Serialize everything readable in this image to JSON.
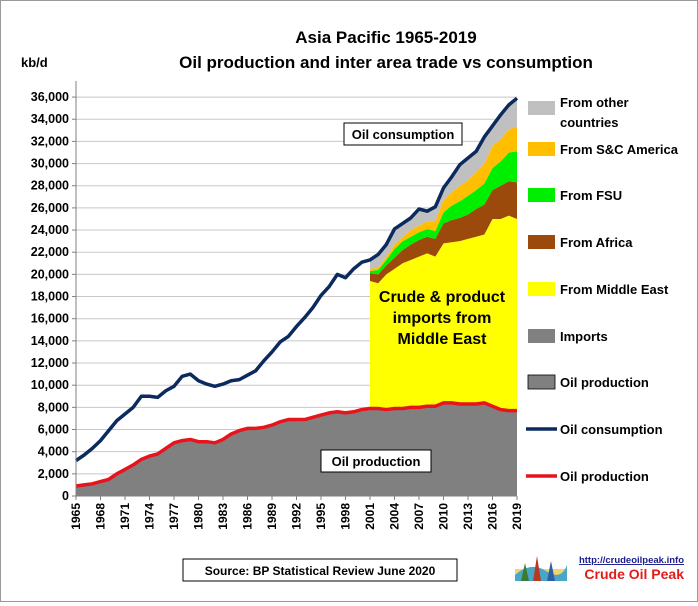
{
  "chart_data": {
    "type": "area",
    "title": "Asia Pacific 1965-2019",
    "subtitle": "Oil production and inter area trade vs consumption",
    "ylabel": "kb/d",
    "ylim": [
      0,
      37000
    ],
    "yticks": [
      0,
      2000,
      4000,
      6000,
      8000,
      10000,
      12000,
      14000,
      16000,
      18000,
      20000,
      22000,
      24000,
      26000,
      28000,
      30000,
      32000,
      34000,
      36000
    ],
    "ytick_labels": [
      "0",
      "2,000",
      "4,000",
      "6,000",
      "8,000",
      "10,000",
      "12,000",
      "14,000",
      "16,000",
      "18,000",
      "20,000",
      "22,000",
      "24,000",
      "26,000",
      "28,000",
      "30,000",
      "32,000",
      "34,000",
      "36,000"
    ],
    "xlim": [
      1965,
      2019
    ],
    "xticks": [
      1965,
      1968,
      1971,
      1974,
      1977,
      1980,
      1983,
      1986,
      1989,
      1992,
      1995,
      1998,
      2001,
      2004,
      2007,
      2010,
      2013,
      2016,
      2019
    ],
    "xtick_labels": [
      "1965",
      "1968",
      "1971",
      "1974",
      "1977",
      "1980",
      "1983",
      "1986",
      "1989",
      "1992",
      "1995",
      "1998",
      "2001",
      "2004",
      "2007",
      "2010",
      "2013",
      "2016",
      "2019"
    ],
    "grid": true,
    "legend_position": "right",
    "years": [
      1965,
      1966,
      1967,
      1968,
      1969,
      1970,
      1971,
      1972,
      1973,
      1974,
      1975,
      1976,
      1977,
      1978,
      1979,
      1980,
      1981,
      1982,
      1983,
      1984,
      1985,
      1986,
      1987,
      1988,
      1989,
      1990,
      1991,
      1992,
      1993,
      1994,
      1995,
      1996,
      1997,
      1998,
      1999,
      2000,
      2001,
      2002,
      2003,
      2004,
      2005,
      2006,
      2007,
      2008,
      2009,
      2010,
      2011,
      2012,
      2013,
      2014,
      2015,
      2016,
      2017,
      2018,
      2019
    ],
    "series": [
      {
        "name": "Oil consumption",
        "color": "#0b2a5e",
        "values": [
          3200,
          3700,
          4300,
          5000,
          5900,
          6800,
          7400,
          8000,
          9000,
          9000,
          8900,
          9500,
          9900,
          10800,
          11000,
          10400,
          10100,
          9900,
          10100,
          10400,
          10500,
          10900,
          11300,
          12200,
          13000,
          13900,
          14400,
          15300,
          16100,
          17000,
          18100,
          18900,
          20000,
          19700,
          20500,
          21100,
          21300,
          21800,
          22700,
          24100,
          24600,
          25100,
          25900,
          25700,
          26100,
          27800,
          28800,
          29900,
          30500,
          31100,
          32400,
          33400,
          34400,
          35300,
          35900
        ]
      },
      {
        "name": "Oil production",
        "color": "#e8141b",
        "values": [
          900,
          1000,
          1100,
          1300,
          1500,
          2000,
          2400,
          2800,
          3300,
          3600,
          3800,
          4300,
          4800,
          5000,
          5100,
          4900,
          4900,
          4800,
          5100,
          5600,
          5900,
          6100,
          6100,
          6200,
          6400,
          6700,
          6900,
          6900,
          6900,
          7100,
          7300,
          7500,
          7600,
          7500,
          7600,
          7800,
          7900,
          7900,
          7800,
          7900,
          7900,
          8000,
          8000,
          8100,
          8100,
          8400,
          8400,
          8300,
          8300,
          8300,
          8400,
          8100,
          7800,
          7700,
          7700
        ]
      }
    ],
    "imports_start_year": 2001,
    "imports_stack": [
      {
        "name": "From Middle East",
        "color": "#ffff00",
        "top": [
          19400,
          19200,
          20000,
          20500,
          21000,
          21300,
          21600,
          21900,
          21600,
          22800,
          22900,
          23000,
          23200,
          23400,
          23600,
          25000,
          25000,
          25300,
          25000
        ]
      },
      {
        "name": "From Africa",
        "color": "#9c4a0c",
        "top": [
          20100,
          20000,
          20800,
          21500,
          22200,
          22700,
          23100,
          23400,
          23200,
          24600,
          24900,
          25100,
          25400,
          25900,
          26300,
          27600,
          28000,
          28400,
          28300
        ]
      },
      {
        "name": "From FSU",
        "color": "#00ee00",
        "top": [
          20300,
          20400,
          21300,
          22300,
          23000,
          23400,
          23800,
          24100,
          23900,
          25600,
          26200,
          26600,
          27100,
          27600,
          28200,
          29600,
          30200,
          31000,
          31100
        ]
      },
      {
        "name": "From S&C America",
        "color": "#ffbf00",
        "top": [
          20500,
          20600,
          21600,
          22700,
          23400,
          24000,
          24400,
          24800,
          24800,
          26700,
          27400,
          28000,
          28500,
          29200,
          30000,
          31600,
          32200,
          33100,
          33300
        ]
      },
      {
        "name": "From other countries",
        "color": "#c0c0c0",
        "top": [
          21300,
          21800,
          22700,
          24100,
          24600,
          25100,
          25900,
          25700,
          26100,
          27800,
          28800,
          29900,
          30500,
          31100,
          32400,
          33400,
          34400,
          35300,
          35900
        ]
      }
    ],
    "legend": [
      {
        "label": "From other\ncountries",
        "color": "#c0c0c0",
        "kind": "rect"
      },
      {
        "label": "From S&C America",
        "color": "#ffbf00",
        "kind": "rect"
      },
      {
        "label": "From FSU",
        "color": "#00ee00",
        "kind": "rect"
      },
      {
        "label": "From Africa",
        "color": "#9c4a0c",
        "kind": "rect"
      },
      {
        "label": "From Middle East",
        "color": "#ffff00",
        "kind": "rect"
      },
      {
        "label": "Imports",
        "color": "#808080",
        "kind": "rect"
      },
      {
        "label": "Oil production",
        "color": "#808080",
        "kind": "rect"
      },
      {
        "label": "Oil consumption",
        "color": "#0b2a5e",
        "kind": "line"
      },
      {
        "label": "Oil production",
        "color": "#e8141b",
        "kind": "line"
      }
    ],
    "annotations": {
      "consumption": "Oil consumption",
      "imports": "Crude & product\nimports from\nMiddle East",
      "production": "Oil production"
    },
    "source": "Source: BP Statistical Review  June 2020"
  },
  "logo": {
    "url": "http://crudeoilpeak.info",
    "name": "Crude Oil Peak"
  }
}
